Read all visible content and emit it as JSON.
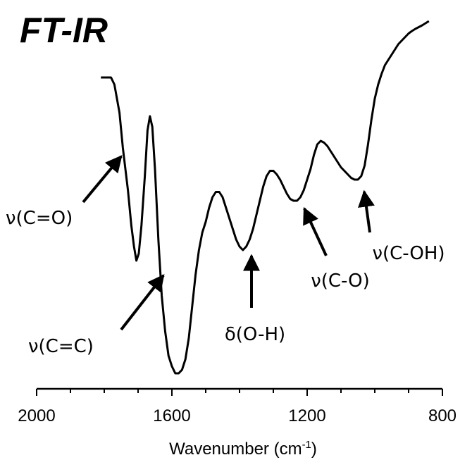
{
  "chart_data": {
    "type": "line",
    "title": "FT-IR",
    "xlabel": "Wavenumber (cm",
    "xlabel_sup": "-1",
    "xlabel_close": ")",
    "ylabel": "",
    "xlim": [
      2000,
      800
    ],
    "x_reversed": true,
    "y_axis_visible": false,
    "grid": false,
    "x_ticks": [
      2000,
      1600,
      1200,
      800
    ],
    "x_tick_labels": [
      "2000",
      "1600",
      "1200",
      "800"
    ],
    "series": [
      {
        "x": [
          1810,
          1780,
          1770,
          1755,
          1745,
          1730,
          1720,
          1712,
          1705,
          1698,
          1690,
          1680,
          1672,
          1665,
          1658,
          1650,
          1640,
          1630,
          1620,
          1610,
          1600,
          1590,
          1580,
          1570,
          1560,
          1550,
          1540,
          1530,
          1520,
          1510,
          1500,
          1490,
          1480,
          1470,
          1460,
          1450,
          1440,
          1430,
          1420,
          1410,
          1400,
          1390,
          1380,
          1370,
          1360,
          1350,
          1340,
          1330,
          1320,
          1310,
          1300,
          1290,
          1280,
          1270,
          1260,
          1250,
          1240,
          1230,
          1220,
          1210,
          1200,
          1190,
          1180,
          1170,
          1160,
          1150,
          1140,
          1130,
          1120,
          1110,
          1100,
          1090,
          1080,
          1070,
          1060,
          1050,
          1040,
          1030,
          1020,
          1010,
          1000,
          990,
          980,
          970,
          960,
          950,
          940,
          930,
          920,
          910,
          900,
          890,
          880,
          870,
          860,
          850,
          840
        ],
        "y": [
          0.84,
          0.84,
          0.82,
          0.74,
          0.64,
          0.52,
          0.42,
          0.36,
          0.32,
          0.34,
          0.42,
          0.56,
          0.69,
          0.73,
          0.7,
          0.58,
          0.38,
          0.22,
          0.12,
          0.05,
          0.02,
          0.0,
          0.0,
          0.01,
          0.04,
          0.1,
          0.19,
          0.28,
          0.35,
          0.4,
          0.43,
          0.47,
          0.5,
          0.515,
          0.515,
          0.5,
          0.47,
          0.44,
          0.41,
          0.38,
          0.36,
          0.35,
          0.36,
          0.38,
          0.41,
          0.45,
          0.49,
          0.53,
          0.56,
          0.575,
          0.575,
          0.565,
          0.55,
          0.53,
          0.51,
          0.495,
          0.49,
          0.49,
          0.5,
          0.52,
          0.55,
          0.58,
          0.62,
          0.65,
          0.66,
          0.655,
          0.645,
          0.63,
          0.615,
          0.6,
          0.585,
          0.575,
          0.565,
          0.555,
          0.55,
          0.55,
          0.56,
          0.59,
          0.65,
          0.72,
          0.78,
          0.82,
          0.85,
          0.875,
          0.89,
          0.905,
          0.92,
          0.935,
          0.945,
          0.955,
          0.965,
          0.972,
          0.978,
          0.983,
          0.988,
          0.994,
          1.0
        ]
      }
    ],
    "annotations": [
      {
        "text": "ν(C=O)",
        "points_to_x": 1730
      },
      {
        "text": "ν(C=C)",
        "points_to_x": 1610
      },
      {
        "text": "δ(O-H)",
        "points_to_x": 1390
      },
      {
        "text": "ν(C-O)",
        "points_to_x": 1235
      },
      {
        "text": "ν(C-OH)",
        "points_to_x": 1045
      }
    ]
  }
}
